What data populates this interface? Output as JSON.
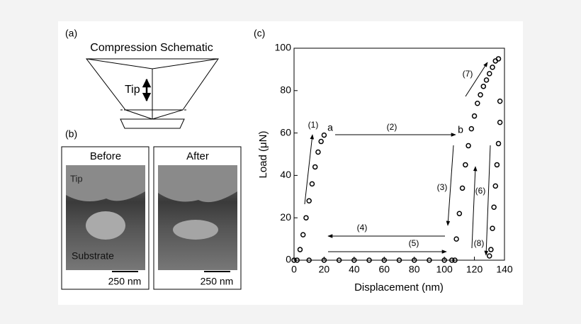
{
  "panel_a": {
    "label": "(a)",
    "title": "Compression Schematic",
    "tip": "Tip"
  },
  "panel_b": {
    "label": "(b)",
    "before": "Before",
    "after": "After",
    "tip": "Tip",
    "substrate": "Substrate",
    "scale_before": "250 nm",
    "scale_after": "250 nm"
  },
  "chart_data": {
    "type": "scatter",
    "panel_label": "(c)",
    "x_label": "Displacement (nm)",
    "y_label": "Load (μN)",
    "xlim": [
      0,
      140
    ],
    "ylim": [
      0,
      100
    ],
    "xticks": [
      0,
      20,
      40,
      60,
      80,
      100,
      120,
      140
    ],
    "yticks": [
      0,
      20,
      40,
      60,
      80,
      100
    ],
    "color": "#000000",
    "x": [
      2,
      4,
      6,
      8,
      10,
      12,
      14,
      16,
      18,
      20,
      0,
      10,
      20,
      30,
      40,
      50,
      60,
      70,
      80,
      90,
      100,
      105,
      107,
      108,
      110,
      112,
      114,
      116,
      118,
      120,
      122,
      124,
      126,
      128,
      130,
      132,
      134,
      136,
      137,
      137,
      136,
      135,
      134,
      133,
      132,
      131,
      130
    ],
    "values": [
      0,
      5,
      12,
      20,
      28,
      36,
      44,
      51,
      56,
      59,
      0,
      0,
      0,
      0,
      0,
      0,
      0,
      0,
      0,
      0,
      0,
      0,
      0,
      10,
      22,
      34,
      45,
      54,
      62,
      68,
      74,
      78,
      82,
      85,
      88,
      91,
      94,
      95,
      75,
      65,
      55,
      45,
      35,
      25,
      15,
      5,
      2
    ],
    "annotations": [
      "(1)",
      "a",
      "(2)",
      "b",
      "(3)",
      "(4)",
      "(5)",
      "(6)",
      "(7)",
      "(8)"
    ]
  }
}
